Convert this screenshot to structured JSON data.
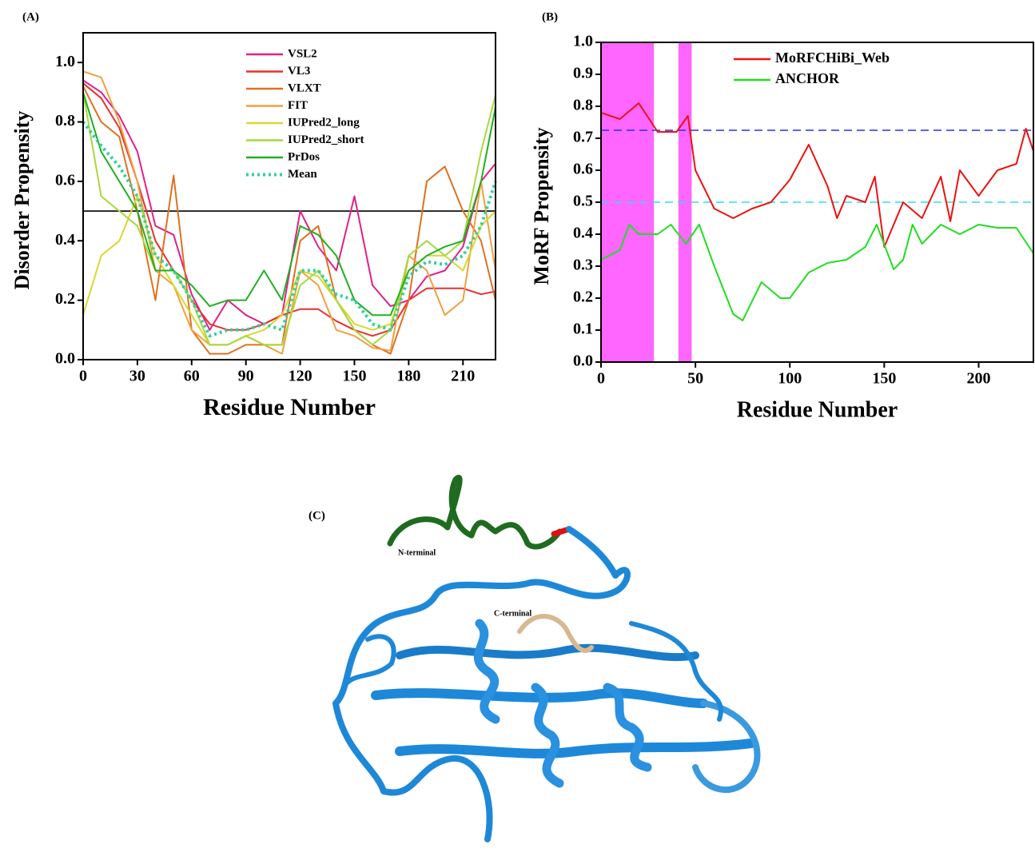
{
  "chart_data": [
    {
      "type": "line",
      "panel_label": "(A)",
      "x_label": "Residue Number",
      "y_label": "Disorder Propensity",
      "xlim": [
        0,
        228
      ],
      "xticks": [
        0,
        30,
        60,
        90,
        120,
        150,
        180,
        210
      ],
      "ylim": [
        0,
        1.1
      ],
      "yticks": [
        {
          "value": 0,
          "label": "0.0"
        },
        0.2,
        0.4,
        0.6,
        0.8,
        {
          "value": 1,
          "label": "1.0"
        }
      ],
      "legend": "upper center",
      "hlines": [
        {
          "value": 0.5,
          "color": "#000000",
          "style": "solid"
        }
      ],
      "x": [
        0,
        10,
        20,
        30,
        40,
        50,
        60,
        70,
        80,
        90,
        100,
        110,
        120,
        130,
        140,
        150,
        160,
        170,
        180,
        190,
        200,
        210,
        220,
        228
      ],
      "series": [
        {
          "name": "VSL2",
          "color": "#e0208a",
          "values": [
            0.94,
            0.9,
            0.82,
            0.7,
            0.45,
            0.42,
            0.22,
            0.1,
            0.2,
            0.15,
            0.12,
            0.15,
            0.5,
            0.38,
            0.3,
            0.55,
            0.25,
            0.18,
            0.2,
            0.28,
            0.3,
            0.38,
            0.6,
            0.66
          ]
        },
        {
          "name": "VL3",
          "color": "#e83030",
          "values": [
            0.93,
            0.88,
            0.78,
            0.6,
            0.4,
            0.3,
            0.2,
            0.12,
            0.1,
            0.1,
            0.12,
            0.15,
            0.17,
            0.17,
            0.13,
            0.1,
            0.08,
            0.1,
            0.2,
            0.24,
            0.24,
            0.24,
            0.22,
            0.23
          ]
        },
        {
          "name": "VLXT",
          "color": "#e07020",
          "values": [
            0.92,
            0.8,
            0.75,
            0.5,
            0.2,
            0.62,
            0.1,
            0.02,
            0.02,
            0.05,
            0.05,
            0.05,
            0.4,
            0.45,
            0.2,
            0.1,
            0.05,
            0.02,
            0.2,
            0.6,
            0.65,
            0.5,
            0.4,
            0.2
          ]
        },
        {
          "name": "FIT",
          "color": "#f0a040",
          "values": [
            0.97,
            0.95,
            0.8,
            0.6,
            0.3,
            0.25,
            0.1,
            0.05,
            0.05,
            0.08,
            0.05,
            0.02,
            0.3,
            0.25,
            0.1,
            0.08,
            0.04,
            0.03,
            0.35,
            0.3,
            0.15,
            0.2,
            0.6,
            0.3
          ]
        },
        {
          "name": "IUPred2_long",
          "color": "#d8d830",
          "values": [
            0.15,
            0.35,
            0.4,
            0.55,
            0.35,
            0.25,
            0.15,
            0.05,
            0.05,
            0.08,
            0.1,
            0.15,
            0.3,
            0.28,
            0.2,
            0.12,
            0.1,
            0.12,
            0.3,
            0.35,
            0.35,
            0.3,
            0.45,
            0.5
          ]
        },
        {
          "name": "IUPred2_short",
          "color": "#a8d840",
          "values": [
            0.9,
            0.55,
            0.5,
            0.45,
            0.3,
            0.3,
            0.2,
            0.05,
            0.05,
            0.08,
            0.05,
            0.05,
            0.25,
            0.3,
            0.2,
            0.1,
            0.05,
            0.1,
            0.35,
            0.4,
            0.35,
            0.4,
            0.7,
            0.89
          ]
        },
        {
          "name": "PrDos",
          "color": "#20b020",
          "values": [
            0.9,
            0.7,
            0.6,
            0.5,
            0.3,
            0.3,
            0.25,
            0.18,
            0.2,
            0.2,
            0.3,
            0.2,
            0.45,
            0.42,
            0.35,
            0.2,
            0.15,
            0.15,
            0.3,
            0.35,
            0.38,
            0.4,
            0.6,
            0.85
          ]
        },
        {
          "name": "Mean",
          "color": "#30d0a0",
          "line_style": "dotted",
          "values": [
            0.8,
            0.72,
            0.65,
            0.55,
            0.35,
            0.3,
            0.2,
            0.08,
            0.1,
            0.1,
            0.12,
            0.1,
            0.3,
            0.3,
            0.22,
            0.2,
            0.12,
            0.1,
            0.28,
            0.33,
            0.32,
            0.35,
            0.45,
            0.6
          ]
        }
      ]
    },
    {
      "type": "line",
      "panel_label": "(B)",
      "x_label": "Residue Number",
      "y_label": "MoRF Propensity",
      "xlim": [
        0,
        229
      ],
      "xticks": [
        0,
        50,
        100,
        150,
        200
      ],
      "ylim": [
        0,
        1
      ],
      "yticks": [
        {
          "value": 0,
          "label": "0.0"
        },
        0.1,
        0.2,
        0.3,
        0.4,
        0.5,
        0.6,
        0.7,
        0.8,
        0.9,
        {
          "value": 1,
          "label": "1.0"
        }
      ],
      "legend": "upper right",
      "shaded_regions": [
        {
          "range": [
            0,
            28
          ],
          "color": "#ff66ff"
        },
        {
          "range": [
            41,
            48
          ],
          "color": "#ff66ff"
        }
      ],
      "hlines": [
        {
          "value": 0.725,
          "color": "#2233dd",
          "style": "dashed"
        },
        {
          "value": 0.5,
          "color": "#33dddd",
          "style": "dashed"
        }
      ],
      "series": [
        {
          "name": "MoRFCHiBi_Web",
          "color": "#ee1111",
          "x": [
            0,
            10,
            20,
            30,
            40,
            46,
            50,
            60,
            70,
            80,
            90,
            100,
            110,
            120,
            125,
            130,
            140,
            145,
            150,
            160,
            170,
            180,
            185,
            190,
            200,
            210,
            220,
            225,
            229
          ],
          "values": [
            0.78,
            0.76,
            0.81,
            0.72,
            0.72,
            0.77,
            0.6,
            0.48,
            0.45,
            0.48,
            0.5,
            0.57,
            0.68,
            0.55,
            0.45,
            0.52,
            0.5,
            0.58,
            0.36,
            0.5,
            0.45,
            0.58,
            0.44,
            0.6,
            0.52,
            0.6,
            0.62,
            0.73,
            0.66
          ]
        },
        {
          "name": "ANCHOR",
          "color": "#22dd22",
          "x": [
            0,
            10,
            15,
            20,
            30,
            37,
            45,
            52,
            60,
            70,
            75,
            85,
            95,
            100,
            110,
            120,
            130,
            140,
            146,
            155,
            160,
            165,
            170,
            180,
            190,
            200,
            210,
            220,
            229
          ],
          "values": [
            0.32,
            0.35,
            0.43,
            0.4,
            0.4,
            0.43,
            0.37,
            0.43,
            0.3,
            0.15,
            0.13,
            0.25,
            0.2,
            0.2,
            0.28,
            0.31,
            0.32,
            0.36,
            0.43,
            0.29,
            0.32,
            0.43,
            0.37,
            0.43,
            0.4,
            0.43,
            0.42,
            0.42,
            0.34
          ]
        }
      ]
    }
  ],
  "structure": {
    "panel_label": "(C)",
    "labels": [
      "N-terminal",
      "C-terminal"
    ]
  }
}
